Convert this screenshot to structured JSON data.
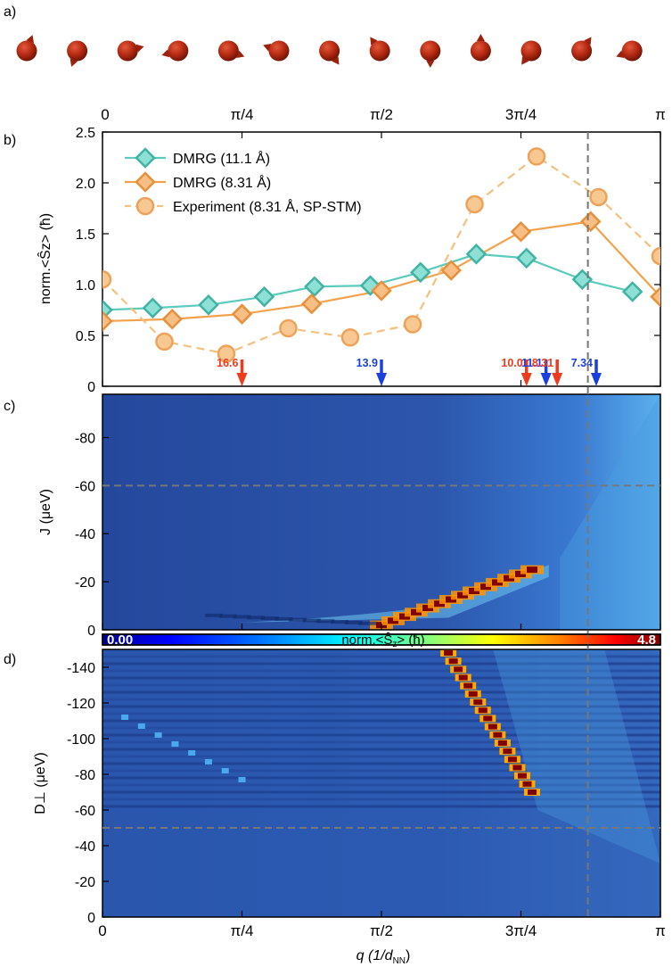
{
  "panel_labels": {
    "a": "a)",
    "b": "b)",
    "c": "c)",
    "d": "d)"
  },
  "colors": {
    "dmrg_111": "#5bcbbd",
    "dmrg_831": "#f2a24a",
    "experiment": "#f5c07e",
    "arrow_red": "#ee3b1b",
    "arrow_blue": "#1a40e0",
    "atom": "#b52a12",
    "dashed": "#777777"
  },
  "panel_a": {
    "spin_chain": {
      "atom_count": 13,
      "spin_angles_deg": [
        70,
        250,
        15,
        195,
        340,
        160,
        305,
        125,
        270,
        90,
        235,
        55,
        200
      ]
    }
  },
  "q_axis": {
    "tick_labels": [
      "0",
      "π/4",
      "π/2",
      "3π/4",
      "π"
    ],
    "tick_values": [
      0,
      0.25,
      0.5,
      0.75,
      1.0
    ],
    "label": "q (1/d",
    "label_sub": "NN",
    "label_close": ")"
  },
  "colorbar": {
    "min_label": "0.00",
    "max_label": "4.8",
    "label": "norm.<Ŝ",
    "label_sub": "z",
    "label_tail": "> (ħ)"
  },
  "chart_data": [
    {
      "type": "line",
      "panel": "b",
      "xunit": "q/π",
      "ylabel": "norm.<Ŝz> (ħ)",
      "ylim": [
        0,
        2.5
      ],
      "xlim": [
        0,
        1
      ],
      "yticks": [
        "0",
        "0.5",
        "1.0",
        "1.5",
        "2.0",
        "2.5"
      ],
      "legend_position": "top-left",
      "series": [
        {
          "name": "DMRG (11.1 Å)",
          "marker": "diamond",
          "line": "solid",
          "x": [
            0,
            0.09,
            0.19,
            0.29,
            0.38,
            0.48,
            0.57,
            0.67,
            0.76,
            0.86,
            0.95
          ],
          "y": [
            0.75,
            0.77,
            0.8,
            0.88,
            0.98,
            0.99,
            1.12,
            1.3,
            1.26,
            1.05,
            0.93
          ]
        },
        {
          "name": "DMRG (8.31 Å)",
          "marker": "diamond",
          "line": "solid",
          "x": [
            0,
            0.125,
            0.25,
            0.375,
            0.5,
            0.625,
            0.75,
            0.875,
            1.0
          ],
          "y": [
            0.64,
            0.66,
            0.71,
            0.81,
            0.94,
            1.14,
            1.52,
            1.62,
            0.88
          ]
        },
        {
          "name": "Experiment (8.31 Å, SP-STM)",
          "marker": "circle",
          "line": "dashed",
          "x": [
            0,
            0.111,
            0.222,
            0.333,
            0.444,
            0.556,
            0.667,
            0.778,
            0.889,
            1.0
          ],
          "y": [
            1.05,
            0.44,
            0.32,
            0.57,
            0.48,
            0.61,
            1.79,
            2.26,
            1.86,
            1.28
          ]
        }
      ],
      "arrows": [
        {
          "label": "16.6",
          "x": 0.25,
          "color": "red"
        },
        {
          "label": "13.9",
          "x": 0.5,
          "color": "blue"
        },
        {
          "label": "10.0",
          "x": 0.76,
          "color": "red"
        },
        {
          "label": "11.1",
          "x": 0.795,
          "color": "blue"
        },
        {
          "label": "8.31",
          "x": 0.815,
          "color": "red"
        },
        {
          "label": "7.34",
          "x": 0.885,
          "color": "blue"
        }
      ],
      "vertical_dashed_x": 0.87
    },
    {
      "type": "heatmap",
      "panel": "c",
      "ylabel": "J (μeV)",
      "ylim": [
        0,
        -98
      ],
      "yticks": [
        "0",
        "-20",
        "-40",
        "-60",
        "-80"
      ],
      "yvalues": [
        0,
        -20,
        -40,
        -60,
        -80
      ],
      "horizontal_dashed_y": -60,
      "peak_ridge": {
        "x": [
          0.5,
          0.6,
          0.7,
          0.78
        ],
        "y": [
          -2,
          -8,
          -15,
          -25
        ]
      }
    },
    {
      "type": "heatmap",
      "panel": "d",
      "ylabel": "D⊥ (μeV)",
      "ylim": [
        0,
        -150
      ],
      "yticks": [
        "0",
        "-20",
        "-40",
        "-60",
        "-80",
        "-100",
        "-120",
        "-140"
      ],
      "yvalues": [
        0,
        -20,
        -40,
        -60,
        -80,
        -100,
        -120,
        -140
      ],
      "horizontal_dashed_y": -50,
      "peak_ridge": {
        "x": [
          0.62,
          0.66,
          0.7,
          0.74,
          0.77
        ],
        "y": [
          -150,
          -130,
          -110,
          -90,
          -75
        ]
      }
    }
  ]
}
